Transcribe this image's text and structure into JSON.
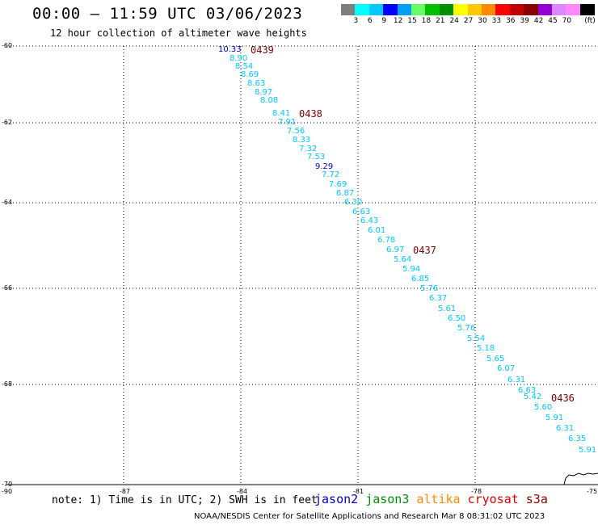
{
  "title": "00:00 – 11:59 UTC 03/06/2023",
  "subtitle": "12 hour collection of altimeter wave heights",
  "colorbar": {
    "unit": "(ft)",
    "bins": [
      {
        "label": "",
        "color": "#7f7f7f"
      },
      {
        "label": "3",
        "color": "#00ffff"
      },
      {
        "label": "6",
        "color": "#00c8ff"
      },
      {
        "label": "9",
        "color": "#0000ff"
      },
      {
        "label": "12",
        "color": "#00a0ff"
      },
      {
        "label": "15",
        "color": "#66ff66"
      },
      {
        "label": "18",
        "color": "#00c000"
      },
      {
        "label": "21",
        "color": "#009000"
      },
      {
        "label": "24",
        "color": "#ffff00"
      },
      {
        "label": "27",
        "color": "#ffc800"
      },
      {
        "label": "30",
        "color": "#ff8c00"
      },
      {
        "label": "33",
        "color": "#ff0000"
      },
      {
        "label": "36",
        "color": "#c00000"
      },
      {
        "label": "39",
        "color": "#8b0000"
      },
      {
        "label": "42",
        "color": "#9400d3"
      },
      {
        "label": "45",
        "color": "#dd88ff"
      },
      {
        "label": "70",
        "color": "#ff88ff"
      },
      {
        "label": "",
        "color": "#000000"
      }
    ]
  },
  "map": {
    "lon_range": [
      -90,
      -75
    ],
    "lat_range": [
      -70,
      -60
    ],
    "lon_ticks": [
      "-87",
      "-84",
      "-81",
      "-78",
      "-75"
    ],
    "lon_origin_label": "-90",
    "lat_ticks": [
      "-60",
      "-62",
      "-64",
      "-66",
      "-68",
      "-70"
    ],
    "grid": "dotted"
  },
  "colors": {
    "light_blue": "#00c8ff",
    "blue": "#0000c8",
    "pass_label": "#7a0000"
  },
  "passes": [
    "0439",
    "0438",
    "0437",
    "0436"
  ],
  "swh_values": [
    "10.33",
    "8.90",
    "8.54",
    "8.69",
    "8.63",
    "8.97",
    "8.08",
    "8.41",
    "7.91",
    "7.56",
    "8.33",
    "7.32",
    "7.53",
    "9.29",
    "7.72",
    "7.69",
    "6.87",
    "6.30",
    "6.63",
    "6.43",
    "6.01",
    "6.78",
    "6.97",
    "5.64",
    "5.94",
    "6.85",
    "5.76",
    "6.37",
    "5.61",
    "6.50",
    "5.76",
    "5.54",
    "5.18",
    "5.65",
    "6.07",
    "6.31",
    "6.63",
    "5.42",
    "5.60",
    "5.91",
    "6.31",
    "6.35",
    "5.91"
  ],
  "note": "note: 1) Time is in UTC; 2) SWH is in feet",
  "satellites": [
    {
      "name": "jason2",
      "color": "#0000c8"
    },
    {
      "name": "jason3",
      "color": "#009000"
    },
    {
      "name": "altika",
      "color": "#ff8c00"
    },
    {
      "name": "cryosat",
      "color": "#dd0000"
    },
    {
      "name": "s3a",
      "color": "#8b0000"
    }
  ],
  "credit": "NOAA/NESDIS Center for Satellite Applications and Research   Mar  8 08:31:02 UTC 2023"
}
